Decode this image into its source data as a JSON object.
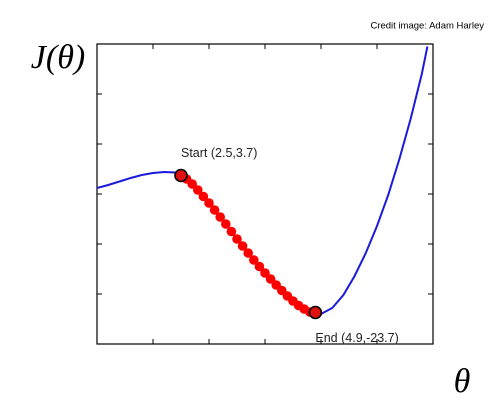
{
  "chart_data": {
    "type": "line",
    "credit": "Credit image: Adam Harley",
    "y_label": "J(θ)",
    "x_label": "θ",
    "xlim": [
      1,
      7
    ],
    "ylim": [
      -30,
      30
    ],
    "xticks": [
      2,
      3,
      4,
      5,
      6,
      7
    ],
    "yticks": [
      -20,
      -10,
      0,
      10,
      20
    ],
    "series": [
      {
        "color": "#1a1adc",
        "style": "line",
        "x": [
          1.0,
          1.2,
          1.4,
          1.6,
          1.8,
          2.0,
          2.2,
          2.4,
          2.6,
          2.8,
          3.0,
          3.2,
          3.4,
          3.6,
          3.8,
          4.0,
          4.2,
          4.4,
          4.6,
          4.8,
          5.0,
          5.2,
          5.4,
          5.6,
          5.8,
          6.0,
          6.2,
          6.4,
          6.6,
          6.8,
          6.9
        ],
        "values": [
          1.2,
          1.8,
          2.5,
          3.2,
          3.8,
          4.2,
          4.4,
          4.3,
          3.0,
          0.8,
          -1.8,
          -4.6,
          -7.5,
          -10.4,
          -13.2,
          -15.8,
          -18.2,
          -20.4,
          -22.3,
          -23.6,
          -24.0,
          -22.8,
          -20.2,
          -16.4,
          -11.8,
          -6.4,
          -0.2,
          7.0,
          15.0,
          24.0,
          29.5
        ]
      },
      {
        "color": "#ff0000",
        "style": "dots",
        "x": [
          2.5,
          2.6,
          2.7,
          2.8,
          2.9,
          3.0,
          3.1,
          3.2,
          3.3,
          3.4,
          3.5,
          3.6,
          3.7,
          3.8,
          3.9,
          4.0,
          4.1,
          4.2,
          4.3,
          4.4,
          4.5,
          4.6,
          4.7,
          4.8,
          4.9
        ],
        "values": [
          3.7,
          3.0,
          2.0,
          0.8,
          -0.5,
          -1.8,
          -3.2,
          -4.6,
          -6.0,
          -7.5,
          -9.0,
          -10.4,
          -11.8,
          -13.2,
          -14.5,
          -15.8,
          -17.0,
          -18.2,
          -19.3,
          -20.4,
          -21.4,
          -22.3,
          -23.0,
          -23.6,
          -23.7
        ]
      }
    ],
    "annotations": [
      {
        "text": "Start (2.5,3.7)",
        "x": 2.5,
        "y": 3.7,
        "position": "above"
      },
      {
        "text": "End (4.9,-23.7)",
        "x": 4.9,
        "y": -23.7,
        "position": "below"
      }
    ]
  }
}
